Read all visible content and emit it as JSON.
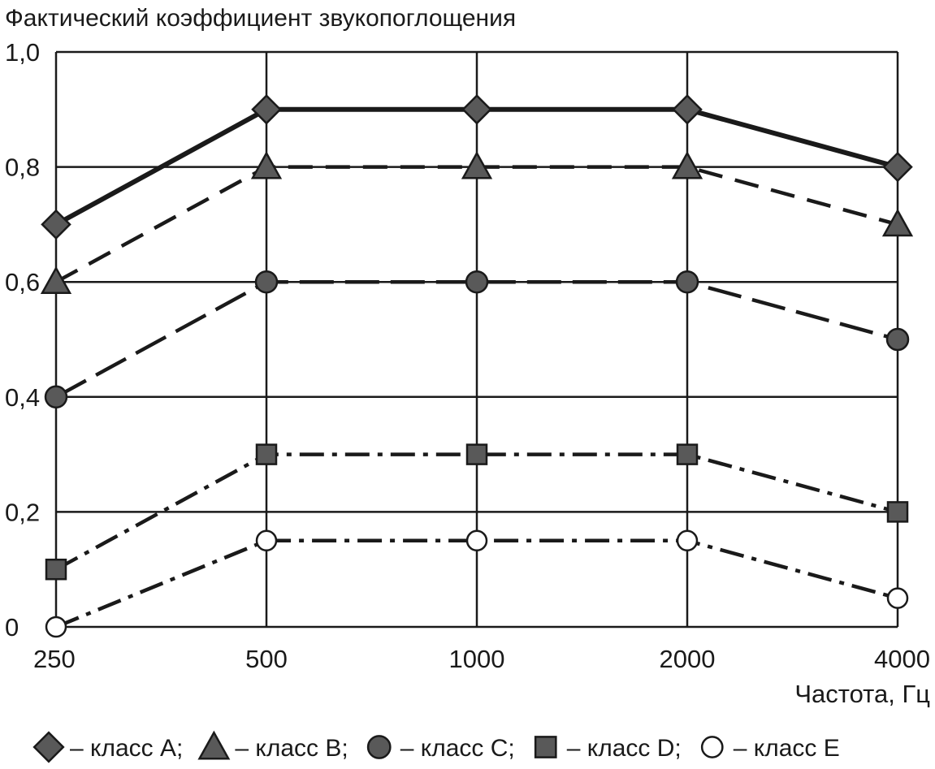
{
  "chart_data": {
    "type": "line",
    "title": "Фактический коэффициент звукопоглощения",
    "xlabel": "Частота, Гц",
    "ylabel": "",
    "categories": [
      "250",
      "500",
      "1000",
      "2000",
      "4000"
    ],
    "y_tick_labels": [
      "0",
      "0,2",
      "0,4",
      "0,6",
      "0,8",
      "1,0"
    ],
    "y_ticks": [
      0,
      0.2,
      0.4,
      0.6,
      0.8,
      1.0
    ],
    "ylim": [
      0,
      1.0
    ],
    "grid": true,
    "legend_position": "bottom",
    "series": [
      {
        "name": "– класс A;",
        "marker": "diamond",
        "dash": "solid",
        "values": [
          0.7,
          0.9,
          0.9,
          0.9,
          0.8
        ]
      },
      {
        "name": "– класс B;",
        "marker": "triangle",
        "dash": "dashed",
        "values": [
          0.6,
          0.8,
          0.8,
          0.8,
          0.7
        ]
      },
      {
        "name": "– класс C;",
        "marker": "circle",
        "dash": "long-dashed",
        "values": [
          0.4,
          0.6,
          0.6,
          0.6,
          0.5
        ]
      },
      {
        "name": "– класс D;",
        "marker": "square",
        "dash": "dash-dot",
        "values": [
          0.1,
          0.3,
          0.3,
          0.3,
          0.2
        ]
      },
      {
        "name": "– класс E",
        "marker": "open-circle",
        "dash": "dash-dot",
        "values": [
          0.0,
          0.15,
          0.15,
          0.15,
          0.05
        ]
      }
    ],
    "colors": {
      "line": "#1a1a1a",
      "marker_fill": "#595959",
      "open_marker_fill": "#ffffff"
    }
  }
}
